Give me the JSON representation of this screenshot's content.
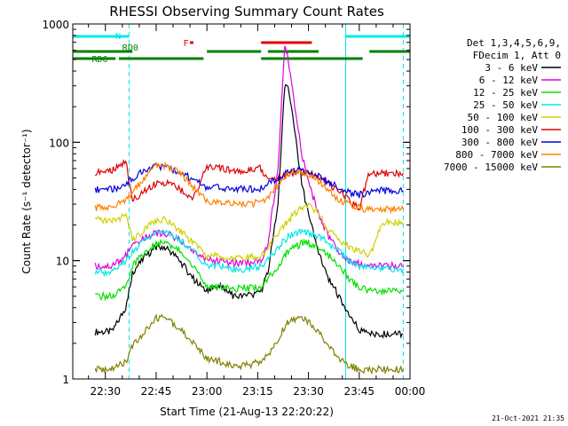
{
  "chart_data": {
    "type": "line",
    "title": "RHESSI Observing Summary Count Rates",
    "xlabel": "Start Time (21-Aug-13 22:20:22)",
    "ylabel": "Count Rate (s⁻¹ detector⁻¹)",
    "x_ticks": [
      "22:30",
      "22:45",
      "23:00",
      "23:15",
      "23:30",
      "23:45",
      "00:00"
    ],
    "y_scale": "log",
    "y_ticks": [
      "1",
      "10",
      "100",
      "1000"
    ],
    "ylim": [
      1,
      1000
    ],
    "xlim": [
      "22:20:22",
      "00:00:00"
    ],
    "legend_header": [
      "Det 1,3,4,5,6,9,",
      "FDecim 1, Att 0"
    ],
    "flag_labels": {
      "saa": "N",
      "rd0": "RD0",
      "rd6": "RD6",
      "flare": "F"
    },
    "footer_date": "21-Oct-2021 21:35",
    "colors": {
      "3 - 6 keV": "#000000",
      "6 - 12 keV": "#e000e0",
      "12 - 25 keV": "#00e000",
      "25 - 50 keV": "#00e8e8",
      "50 - 100 keV": "#d0d000",
      "100 - 300 keV": "#e00000",
      "300 - 800 keV": "#0000e0",
      "800 - 7000 keV": "#ff8000",
      "7000 - 15000 keV": "#808000",
      "flag_n": "#00e8e8",
      "flag_rd": "#008000",
      "flag_f": "#e00000"
    },
    "series": [
      {
        "name": "3 - 6 keV",
        "x": [
          "22:27",
          "22:32",
          "22:36",
          "22:38",
          "22:42",
          "22:45",
          "22:48",
          "22:52",
          "22:56",
          "23:00",
          "23:04",
          "23:08",
          "23:12",
          "23:16",
          "23:18",
          "23:21",
          "23:23",
          "23:24",
          "23:26",
          "23:28",
          "23:30",
          "23:33",
          "23:36",
          "23:39",
          "23:42",
          "23:45",
          "23:48",
          "23:52",
          "23:55",
          "23:58"
        ],
        "values": [
          2.5,
          2.5,
          4,
          8,
          11,
          13,
          13,
          10,
          7,
          5.5,
          6,
          5,
          5,
          5.5,
          8,
          30,
          300,
          280,
          120,
          45,
          24,
          12,
          7,
          5,
          3.5,
          2.6,
          2.4,
          2.4,
          2.4,
          2.4
        ]
      },
      {
        "name": "6 - 12 keV",
        "x": [
          "22:27",
          "22:32",
          "22:36",
          "22:38",
          "22:42",
          "22:45",
          "22:48",
          "22:52",
          "22:56",
          "23:00",
          "23:04",
          "23:08",
          "23:12",
          "23:16",
          "23:18",
          "23:21",
          "23:23",
          "23:24",
          "23:26",
          "23:28",
          "23:30",
          "23:33",
          "23:36",
          "23:39",
          "23:42",
          "23:45",
          "23:48",
          "23:52",
          "23:55",
          "23:58"
        ],
        "values": [
          9,
          9,
          11,
          13,
          16,
          17,
          17,
          15,
          12,
          10,
          10,
          9.5,
          9.5,
          10,
          14,
          60,
          650,
          500,
          200,
          80,
          45,
          25,
          16,
          12,
          10,
          9.5,
          9,
          9,
          9,
          9
        ]
      },
      {
        "name": "12 - 25 keV",
        "x": [
          "22:27",
          "22:32",
          "22:36",
          "22:38",
          "22:42",
          "22:45",
          "22:48",
          "22:52",
          "22:56",
          "23:00",
          "23:04",
          "23:08",
          "23:12",
          "23:16",
          "23:18",
          "23:21",
          "23:23",
          "23:24",
          "23:26",
          "23:28",
          "23:30",
          "23:33",
          "23:36",
          "23:39",
          "23:42",
          "23:45",
          "23:48",
          "23:52",
          "23:55",
          "23:58"
        ],
        "values": [
          5,
          5,
          6,
          9,
          12,
          14,
          14,
          12,
          9,
          6,
          6,
          5.8,
          5.8,
          6,
          7,
          9,
          11,
          12,
          13,
          14,
          14,
          13,
          11,
          9,
          7,
          6,
          5.5,
          5.5,
          5.5,
          5.5
        ]
      },
      {
        "name": "25 - 50 keV",
        "x": [
          "22:27",
          "22:32",
          "22:36",
          "22:38",
          "22:42",
          "22:45",
          "22:48",
          "22:52",
          "22:56",
          "23:00",
          "23:04",
          "23:08",
          "23:12",
          "23:16",
          "23:18",
          "23:21",
          "23:23",
          "23:24",
          "23:26",
          "23:28",
          "23:30",
          "23:33",
          "23:36",
          "23:39",
          "23:42",
          "23:45",
          "23:48",
          "23:52",
          "23:55",
          "23:58"
        ],
        "values": [
          8,
          8,
          10,
          12,
          15,
          17,
          17,
          15,
          12,
          9,
          9,
          8.5,
          8.5,
          9,
          10,
          13,
          15,
          16,
          17,
          18,
          17,
          16,
          14,
          12,
          10,
          9,
          8.5,
          8.5,
          8.5,
          8.5
        ]
      },
      {
        "name": "50 - 100 keV",
        "x": [
          "22:27",
          "22:32",
          "22:36",
          "22:38",
          "22:42",
          "22:45",
          "22:48",
          "22:52",
          "22:56",
          "23:00",
          "23:04",
          "23:08",
          "23:12",
          "23:16",
          "23:18",
          "23:21",
          "23:23",
          "23:24",
          "23:26",
          "23:28",
          "23:30",
          "23:33",
          "23:36",
          "23:39",
          "23:42",
          "23:45",
          "23:48",
          "23:52",
          "23:55",
          "23:58"
        ],
        "values": [
          22,
          22,
          24,
          15,
          19,
          22,
          22,
          18,
          14,
          11,
          11,
          10.5,
          10.5,
          11,
          13,
          17,
          20,
          22,
          25,
          28,
          30,
          25,
          18,
          15,
          13,
          12,
          11,
          21,
          21,
          21
        ]
      },
      {
        "name": "100 - 300 keV",
        "x": [
          "22:27",
          "22:32",
          "22:36",
          "22:38",
          "22:42",
          "22:45",
          "22:48",
          "22:52",
          "22:56",
          "23:00",
          "23:04",
          "23:08",
          "23:12",
          "23:16",
          "23:18",
          "23:21",
          "23:23",
          "23:24",
          "23:26",
          "23:28",
          "23:30",
          "23:33",
          "23:36",
          "23:39",
          "23:42",
          "23:45",
          "23:48",
          "23:52",
          "23:55",
          "23:58"
        ],
        "values": [
          55,
          58,
          70,
          32,
          40,
          45,
          45,
          40,
          34,
          62,
          60,
          58,
          58,
          60,
          48,
          50,
          52,
          54,
          55,
          56,
          55,
          50,
          44,
          38,
          32,
          28,
          55,
          55,
          55,
          55
        ]
      },
      {
        "name": "300 - 800 keV",
        "x": [
          "22:27",
          "22:32",
          "22:36",
          "22:38",
          "22:42",
          "22:45",
          "22:48",
          "22:52",
          "22:56",
          "23:00",
          "23:04",
          "23:08",
          "23:12",
          "23:16",
          "23:18",
          "23:21",
          "23:23",
          "23:24",
          "23:26",
          "23:28",
          "23:30",
          "23:33",
          "23:36",
          "23:39",
          "23:42",
          "23:45",
          "23:48",
          "23:52",
          "23:55",
          "23:58"
        ],
        "values": [
          40,
          40,
          44,
          50,
          58,
          62,
          62,
          56,
          48,
          42,
          41,
          40,
          40,
          41,
          45,
          50,
          54,
          56,
          58,
          58,
          56,
          52,
          46,
          42,
          38,
          36,
          38,
          39,
          39,
          39
        ]
      },
      {
        "name": "800 - 7000 keV",
        "x": [
          "22:27",
          "22:32",
          "22:36",
          "22:38",
          "22:42",
          "22:45",
          "22:48",
          "22:52",
          "22:56",
          "23:00",
          "23:04",
          "23:08",
          "23:12",
          "23:16",
          "23:18",
          "23:21",
          "23:23",
          "23:24",
          "23:26",
          "23:28",
          "23:30",
          "23:33",
          "23:36",
          "23:39",
          "23:42",
          "23:45",
          "23:48",
          "23:52",
          "23:55",
          "23:58"
        ],
        "values": [
          28,
          29,
          32,
          38,
          52,
          64,
          64,
          56,
          42,
          32,
          31,
          30,
          30,
          31,
          34,
          44,
          50,
          54,
          56,
          56,
          54,
          47,
          38,
          32,
          30,
          28,
          27,
          27,
          27,
          27
        ]
      },
      {
        "name": "7000 - 15000 keV",
        "x": [
          "22:27",
          "22:32",
          "22:36",
          "22:38",
          "22:42",
          "22:45",
          "22:48",
          "22:52",
          "22:56",
          "23:00",
          "23:04",
          "23:08",
          "23:12",
          "23:16",
          "23:18",
          "23:21",
          "23:23",
          "23:24",
          "23:26",
          "23:28",
          "23:30",
          "23:33",
          "23:36",
          "23:39",
          "23:42",
          "23:45",
          "23:48",
          "23:52",
          "23:55",
          "23:58"
        ],
        "values": [
          1.2,
          1.2,
          1.4,
          1.9,
          2.6,
          3.3,
          3.3,
          2.7,
          2.0,
          1.5,
          1.4,
          1.3,
          1.3,
          1.4,
          1.6,
          2.2,
          2.8,
          3.0,
          3.2,
          3.2,
          3.0,
          2.5,
          1.9,
          1.5,
          1.3,
          1.2,
          1.2,
          1.2,
          1.2,
          1.2
        ]
      }
    ]
  }
}
